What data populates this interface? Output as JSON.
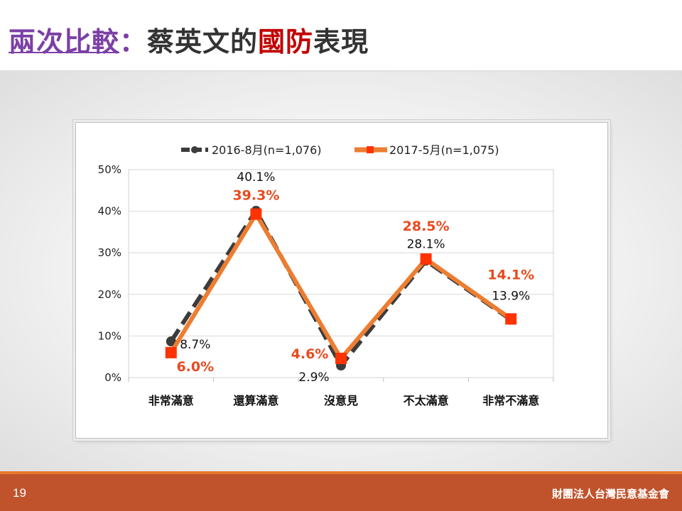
{
  "title": {
    "part1": "兩次比較",
    "colon": "：",
    "part2": "蔡英文的",
    "accent": "國防",
    "part3": "表現"
  },
  "footer": {
    "page_number": "19",
    "org_name": "財團法人台灣民意基金會"
  },
  "colors": {
    "series_2016": "#3c3c3c",
    "series_2017": "#ed7d31",
    "marker_2017": "#ff3300",
    "label_2017": "#e84a1e",
    "footer_bg": "#c0532c",
    "title_purple": "#7b3fa6",
    "title_red": "#c00000"
  },
  "chart_data": {
    "type": "line",
    "categories": [
      "非常滿意",
      "還算滿意",
      "沒意見",
      "不太滿意",
      "非常不滿意"
    ],
    "y_ticks": [
      "0%",
      "10%",
      "20%",
      "30%",
      "40%",
      "50%"
    ],
    "ylim": [
      0,
      50
    ],
    "grid": true,
    "legend_position": "top",
    "series": [
      {
        "name": "2016-8月(n=1,076)",
        "values": [
          8.7,
          40.1,
          2.9,
          28.1,
          13.9
        ],
        "labels": [
          "8.7%",
          "40.1%",
          "2.9%",
          "28.1%",
          "13.9%"
        ],
        "style": "dashed-dark"
      },
      {
        "name": "2017-5月(n=1,075)",
        "values": [
          6.0,
          39.3,
          4.6,
          28.5,
          14.1
        ],
        "labels": [
          "6.0%",
          "39.3%",
          "4.6%",
          "28.5%",
          "14.1%"
        ],
        "style": "solid-orange"
      }
    ]
  }
}
